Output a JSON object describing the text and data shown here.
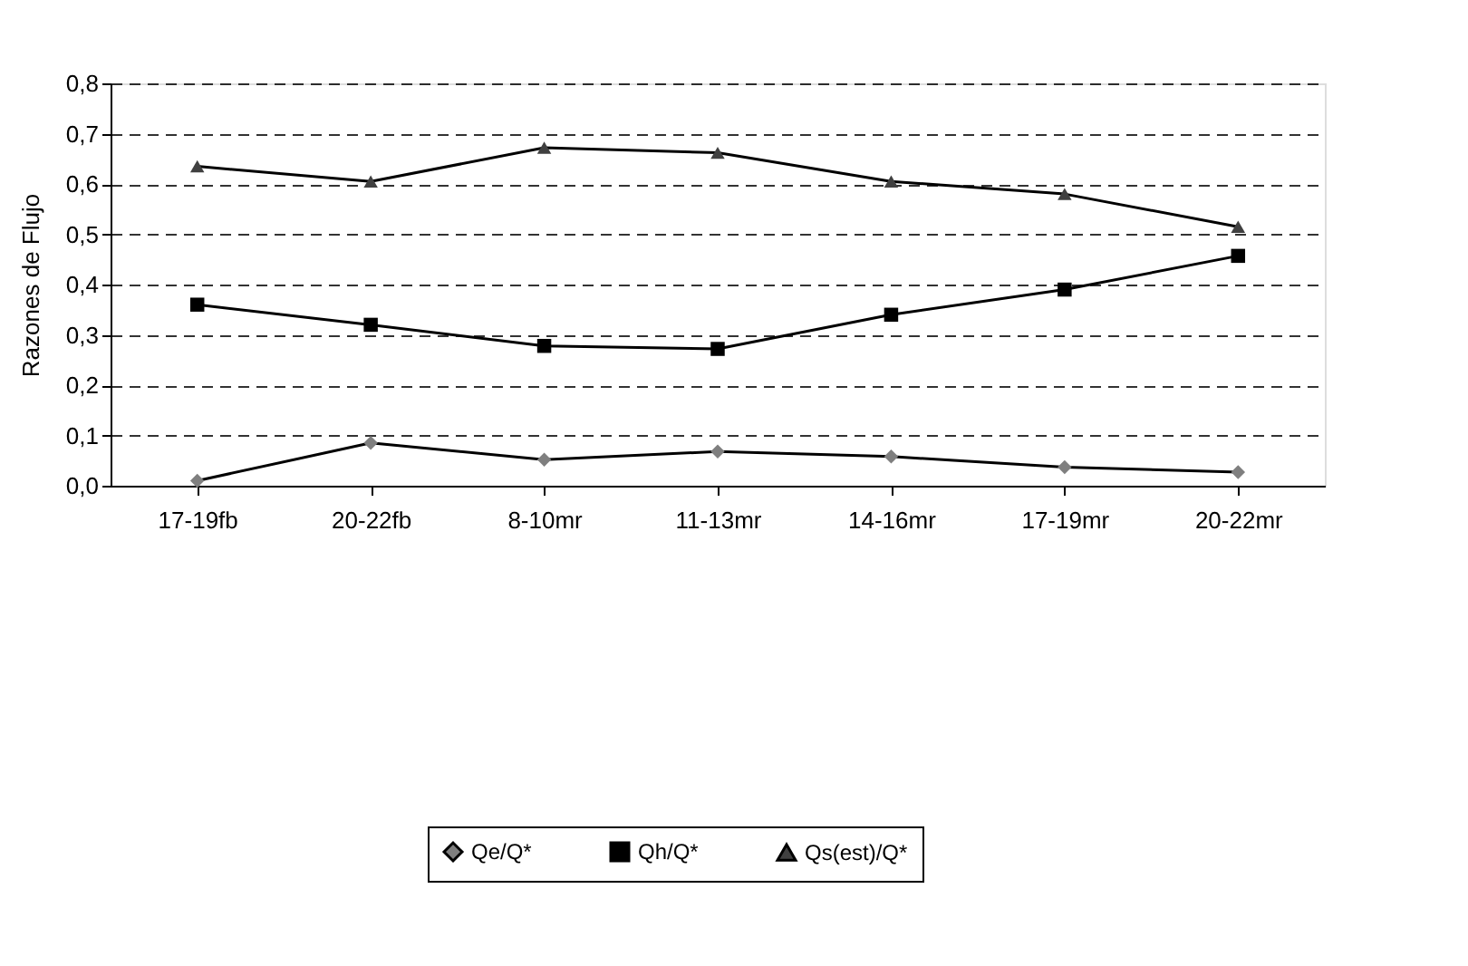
{
  "chart_data": {
    "type": "line",
    "ylabel": "Razones de Flujo",
    "categories": [
      "17-19fb",
      "20-22fb",
      "8-10mr",
      "11-13mr",
      "14-16mr",
      "17-19mr",
      "20-22mr"
    ],
    "series": [
      {
        "name": "Qe/Q*",
        "color": "#7f7f7f",
        "marker": "diamond",
        "values": [
          0.01,
          0.085,
          0.052,
          0.068,
          0.058,
          0.037,
          0.027
        ]
      },
      {
        "name": "Qh/Q*",
        "color": "#000000",
        "marker": "square",
        "values": [
          0.36,
          0.32,
          0.278,
          0.272,
          0.34,
          0.39,
          0.457
        ]
      },
      {
        "name": "Qs(est)/Q*",
        "color": "#404040",
        "marker": "triangle",
        "values": [
          0.635,
          0.605,
          0.672,
          0.662,
          0.605,
          0.58,
          0.515
        ]
      }
    ],
    "ylim": [
      0,
      0.8
    ],
    "yticks": [
      {
        "value": 0,
        "label": "0,0"
      },
      {
        "value": 0.1,
        "label": "0,1"
      },
      {
        "value": 0.2,
        "label": "0,2"
      },
      {
        "value": 0.3,
        "label": "0,3"
      },
      {
        "value": 0.4,
        "label": "0,4"
      },
      {
        "value": 0.5,
        "label": "0,5"
      },
      {
        "value": 0.6,
        "label": "0,6"
      },
      {
        "value": 0.7,
        "label": "0,7"
      },
      {
        "value": 0.8,
        "label": "0,8"
      }
    ],
    "grid": "y",
    "legend": "bottom",
    "line_style": "solid"
  }
}
